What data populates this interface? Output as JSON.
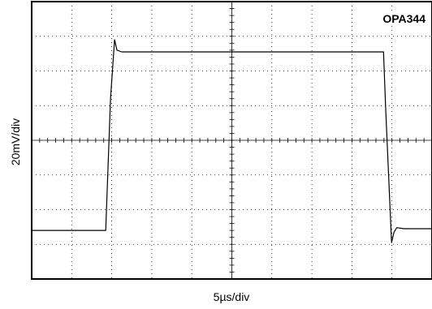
{
  "chart_data": {
    "type": "line",
    "title": "",
    "label": "OPA344",
    "xlabel": "5µs/div",
    "ylabel": "20mV/div",
    "x_divisions": 10,
    "y_divisions": 8,
    "xlim": [
      0,
      10
    ],
    "ylim": [
      -4,
      4
    ],
    "grid": true,
    "series": [
      {
        "name": "",
        "x": [
          0,
          1.85,
          1.97,
          2.07,
          2.13,
          2.25,
          2.45,
          6.0,
          8.79,
          8.84,
          8.99,
          9.05,
          9.12,
          9.3,
          10.0
        ],
        "y": [
          -2.6,
          -2.6,
          1.2,
          2.9,
          2.6,
          2.55,
          2.55,
          2.55,
          2.55,
          1.0,
          -2.95,
          -2.65,
          -2.52,
          -2.55,
          -2.55
        ]
      }
    ]
  }
}
